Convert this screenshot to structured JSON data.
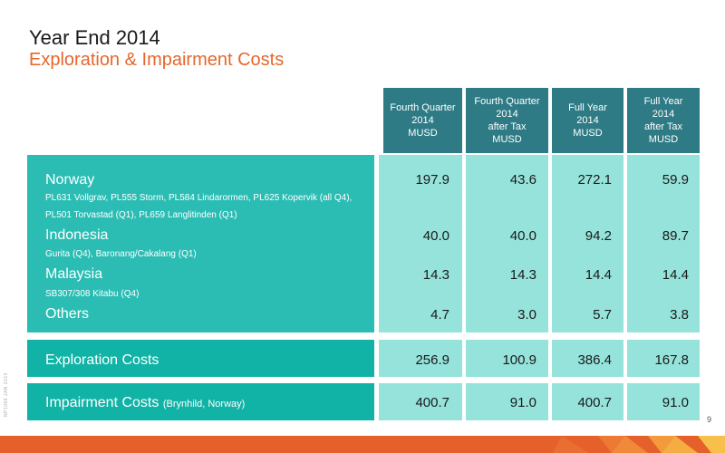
{
  "header": {
    "title": "Year End 2014",
    "subtitle": "Exploration & Impairment Costs"
  },
  "columns": [
    "Fourth Quarter\n2014\nMUSD",
    "Fourth Quarter\n2014\nafter Tax\nMUSD",
    "Full Year\n2014\nMUSD",
    "Full Year\n2014\nafter Tax\nMUSD"
  ],
  "rows": [
    {
      "name": "Norway",
      "detail_line1": "PL631 Vollgrav, PL555 Storm, PL584 Lindarormen, PL625 Kopervik (all Q4),",
      "detail_line2": "PL501 Torvastad (Q1), PL659 Langlitinden (Q1)",
      "values": [
        "197.9",
        "43.6",
        "272.1",
        "59.9"
      ]
    },
    {
      "name": "Indonesia",
      "detail_line1": "Gurita (Q4), Baronang/Cakalang (Q1)",
      "values": [
        "40.0",
        "40.0",
        "94.2",
        "89.7"
      ]
    },
    {
      "name": "Malaysia",
      "detail_line1": "SB307/308 Kitabu (Q4)",
      "values": [
        "14.3",
        "14.3",
        "14.4",
        "14.4"
      ]
    },
    {
      "name": "Others",
      "values": [
        "4.7",
        "3.0",
        "5.7",
        "3.8"
      ]
    }
  ],
  "exploration": {
    "label": "Exploration Costs",
    "values": [
      "256.9",
      "100.9",
      "386.4",
      "167.8"
    ]
  },
  "impairment": {
    "label": "Impairment Costs",
    "note": "(Brynhild, Norway)",
    "values": [
      "400.7",
      "91.0",
      "400.7",
      "91.0"
    ]
  },
  "footer": {
    "page_number": "9",
    "side_info": "NP1088 JAN 2015"
  },
  "colors": {
    "header_bg": "#2e7b86",
    "regions_bg": "#2bbdb4",
    "totals_bg": "#11b3a6",
    "values_bg": "#95e3db",
    "accent": "#e5672b"
  }
}
